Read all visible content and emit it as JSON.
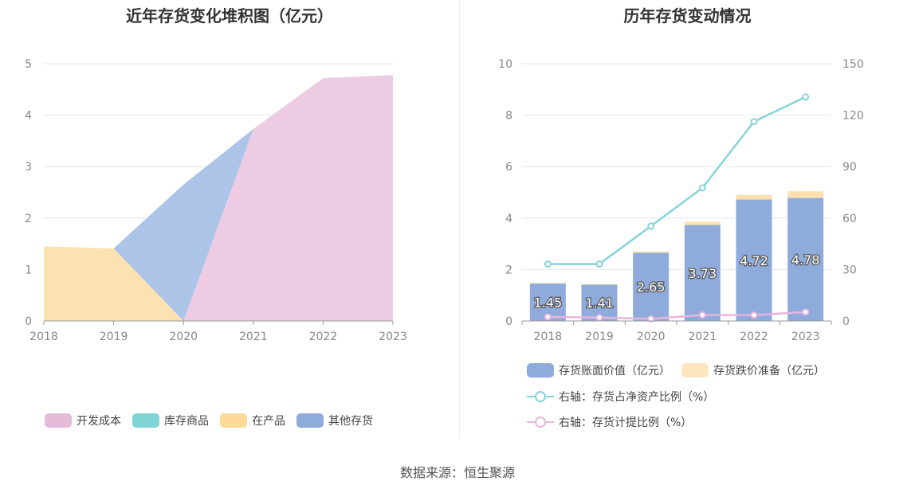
{
  "colors": {
    "development_cost": "#ecc9e2",
    "inventory_goods": "#80d4d6",
    "work_in_progress": "#fde0ad",
    "other_inventory": "#a8c1e6",
    "book_value": "#8eabdc",
    "impairment": "#fde0ad",
    "ratio_net_assets": "#86d4d8",
    "provision_ratio": "#e8b6dc"
  },
  "source": "数据来源：恒生聚源",
  "chart_data": [
    {
      "type": "area",
      "title": "近年存货变化堆积图（亿元）",
      "x": [
        "2018",
        "2019",
        "2020",
        "2021",
        "2022",
        "2023"
      ],
      "ylim": [
        0,
        5
      ],
      "yticks": [
        "0",
        "1",
        "2",
        "3",
        "4",
        "5"
      ],
      "stacked": true,
      "grid": true,
      "series": [
        {
          "name": "开发成本",
          "values": [
            0,
            0,
            0,
            3.73,
            4.72,
            4.78
          ]
        },
        {
          "name": "库存商品",
          "values": [
            0,
            0,
            0,
            0,
            0,
            0
          ]
        },
        {
          "name": "在产品",
          "values": [
            1.45,
            1.41,
            0,
            0,
            0,
            0
          ]
        },
        {
          "name": "其他存货",
          "values": [
            0,
            0,
            2.65,
            0,
            0,
            0
          ]
        }
      ],
      "legend": [
        "开发成本",
        "库存商品",
        "在产品",
        "其他存货"
      ],
      "legend_position": "bottom"
    },
    {
      "type": "bar",
      "title": "历年存货变动情况",
      "x": [
        "2018",
        "2019",
        "2020",
        "2021",
        "2022",
        "2023"
      ],
      "ylim": [
        0,
        10
      ],
      "yticks": [
        "0",
        "2",
        "4",
        "6",
        "8",
        "10"
      ],
      "y2lim": [
        0,
        150
      ],
      "y2ticks": [
        "0",
        "30",
        "60",
        "90",
        "120",
        "150"
      ],
      "grid": true,
      "bars": [
        {
          "name": "存货账面价值（亿元）",
          "values": [
            1.45,
            1.41,
            2.65,
            3.73,
            4.72,
            4.78
          ],
          "labels": [
            "1.45",
            "1.41",
            "2.65",
            "3.73",
            "4.72",
            "4.78"
          ]
        },
        {
          "name": "存货跌价准备（亿元）",
          "values": [
            0.03,
            0.03,
            0.05,
            0.13,
            0.18,
            0.26
          ]
        }
      ],
      "lines": [
        {
          "name": "右轴：存货占净资产比例（%）",
          "axis": "right",
          "values": [
            33.2,
            33.2,
            55.3,
            77.6,
            116.3,
            130.6
          ]
        },
        {
          "name": "右轴：存货计提比例（%）",
          "axis": "right",
          "values": [
            2.4,
            2.0,
            1.2,
            3.5,
            3.4,
            5.2
          ]
        }
      ],
      "legend_position": "bottom"
    }
  ]
}
